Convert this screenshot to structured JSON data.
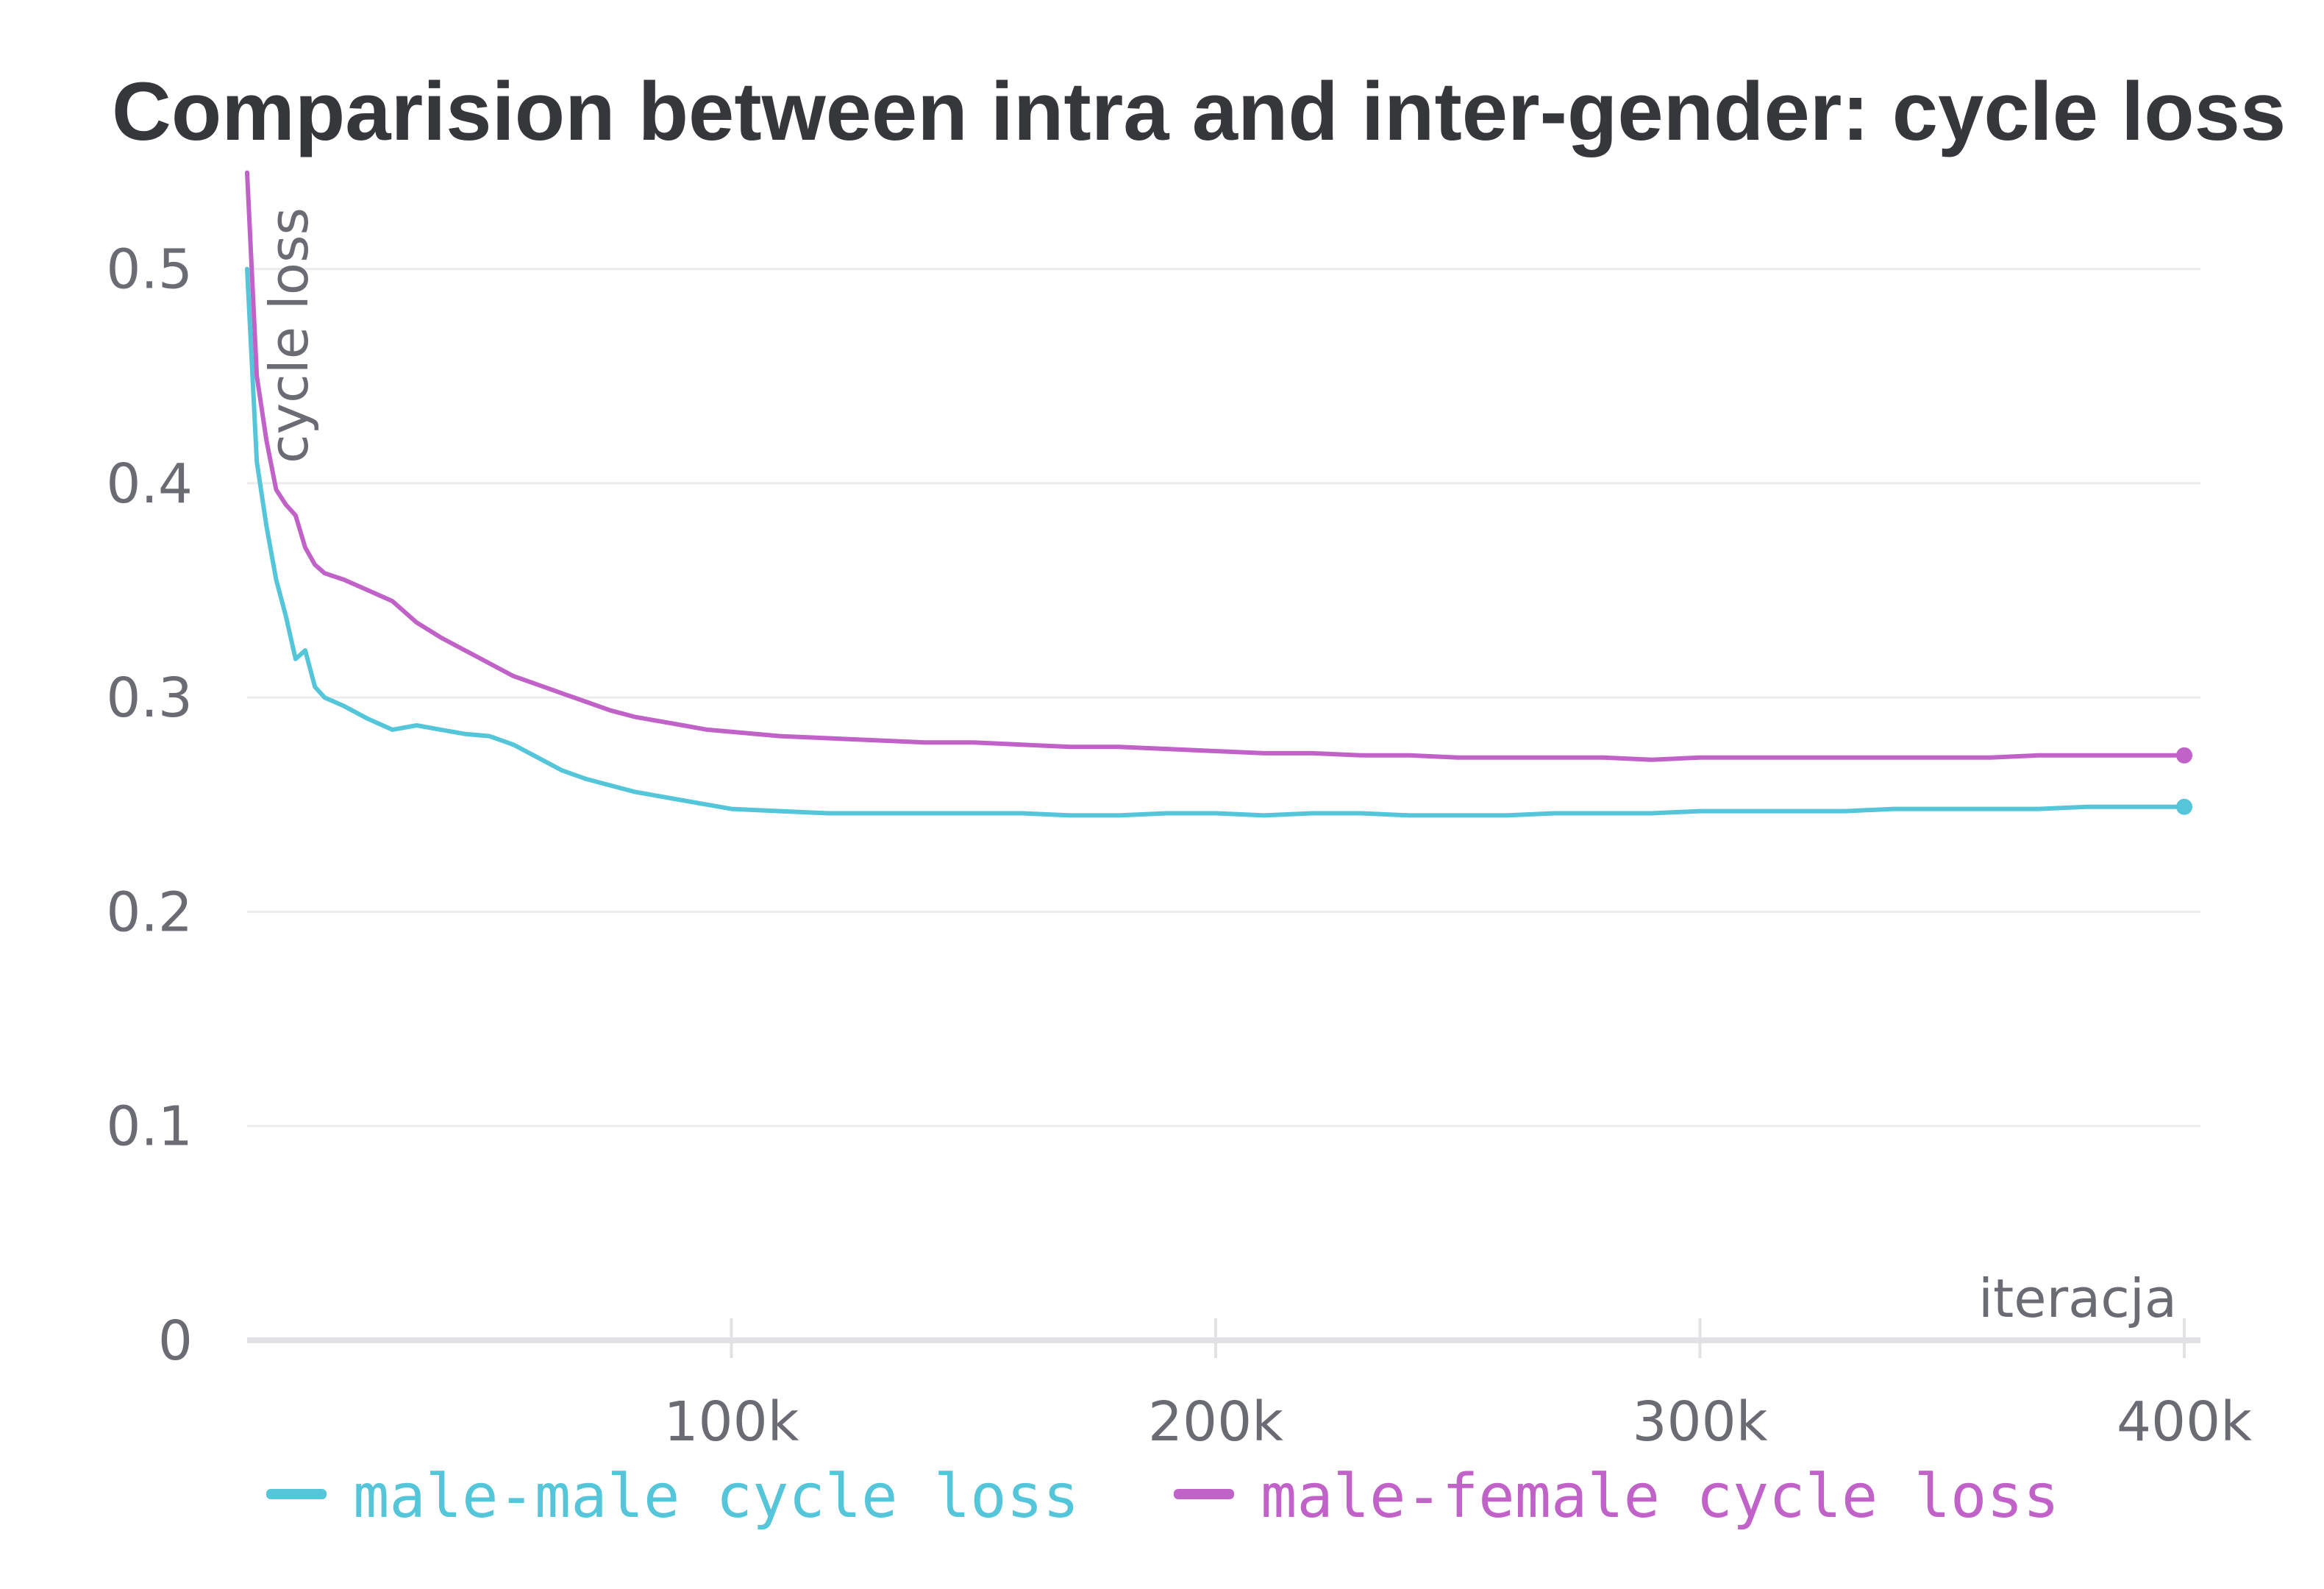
{
  "chart_data": {
    "type": "line",
    "title": "Comparision between intra and inter-gender: cycle loss",
    "xlabel": "iteracja",
    "ylabel": "cycle loss",
    "xlim": [
      0,
      400000
    ],
    "ylim": [
      0,
      0.55
    ],
    "grid": true,
    "legend_position": "bottom",
    "x_ticks": [
      {
        "value": 100000,
        "label": "100k"
      },
      {
        "value": 200000,
        "label": "200k"
      },
      {
        "value": 300000,
        "label": "300k"
      },
      {
        "value": 400000,
        "label": "400k"
      }
    ],
    "y_ticks": [
      {
        "value": 0,
        "label": "0"
      },
      {
        "value": 0.1,
        "label": "0.1"
      },
      {
        "value": 0.2,
        "label": "0.2"
      },
      {
        "value": 0.3,
        "label": "0.3"
      },
      {
        "value": 0.4,
        "label": "0.4"
      },
      {
        "value": 0.5,
        "label": "0.5"
      }
    ],
    "series": [
      {
        "name": "male-male cycle loss",
        "color": "#55c5d9",
        "points": [
          [
            0,
            0.5
          ],
          [
            2000,
            0.41
          ],
          [
            4000,
            0.38
          ],
          [
            6000,
            0.355
          ],
          [
            8000,
            0.338
          ],
          [
            10000,
            0.318
          ],
          [
            12000,
            0.322
          ],
          [
            14000,
            0.305
          ],
          [
            16000,
            0.3
          ],
          [
            20000,
            0.296
          ],
          [
            25000,
            0.29
          ],
          [
            30000,
            0.285
          ],
          [
            35000,
            0.287
          ],
          [
            40000,
            0.285
          ],
          [
            45000,
            0.283
          ],
          [
            50000,
            0.282
          ],
          [
            55000,
            0.278
          ],
          [
            60000,
            0.272
          ],
          [
            65000,
            0.266
          ],
          [
            70000,
            0.262
          ],
          [
            75000,
            0.259
          ],
          [
            80000,
            0.256
          ],
          [
            85000,
            0.254
          ],
          [
            90000,
            0.252
          ],
          [
            95000,
            0.25
          ],
          [
            100000,
            0.248
          ],
          [
            110000,
            0.247
          ],
          [
            120000,
            0.246
          ],
          [
            130000,
            0.246
          ],
          [
            140000,
            0.246
          ],
          [
            150000,
            0.246
          ],
          [
            160000,
            0.246
          ],
          [
            170000,
            0.245
          ],
          [
            180000,
            0.245
          ],
          [
            190000,
            0.246
          ],
          [
            200000,
            0.246
          ],
          [
            210000,
            0.245
          ],
          [
            220000,
            0.246
          ],
          [
            230000,
            0.246
          ],
          [
            240000,
            0.245
          ],
          [
            250000,
            0.245
          ],
          [
            260000,
            0.245
          ],
          [
            270000,
            0.246
          ],
          [
            280000,
            0.246
          ],
          [
            290000,
            0.246
          ],
          [
            300000,
            0.247
          ],
          [
            310000,
            0.247
          ],
          [
            320000,
            0.247
          ],
          [
            330000,
            0.247
          ],
          [
            340000,
            0.248
          ],
          [
            350000,
            0.248
          ],
          [
            360000,
            0.248
          ],
          [
            370000,
            0.248
          ],
          [
            380000,
            0.249
          ],
          [
            390000,
            0.249
          ],
          [
            400000,
            0.249
          ]
        ]
      },
      {
        "name": "male-female cycle loss",
        "color": "#c062c8",
        "points": [
          [
            0,
            0.545
          ],
          [
            2000,
            0.45
          ],
          [
            4000,
            0.42
          ],
          [
            6000,
            0.397
          ],
          [
            8000,
            0.39
          ],
          [
            10000,
            0.385
          ],
          [
            12000,
            0.37
          ],
          [
            14000,
            0.362
          ],
          [
            16000,
            0.358
          ],
          [
            20000,
            0.355
          ],
          [
            25000,
            0.35
          ],
          [
            30000,
            0.345
          ],
          [
            35000,
            0.335
          ],
          [
            40000,
            0.328
          ],
          [
            45000,
            0.322
          ],
          [
            50000,
            0.316
          ],
          [
            55000,
            0.31
          ],
          [
            60000,
            0.306
          ],
          [
            65000,
            0.302
          ],
          [
            70000,
            0.298
          ],
          [
            75000,
            0.294
          ],
          [
            80000,
            0.291
          ],
          [
            85000,
            0.289
          ],
          [
            90000,
            0.287
          ],
          [
            95000,
            0.285
          ],
          [
            100000,
            0.284
          ],
          [
            110000,
            0.282
          ],
          [
            120000,
            0.281
          ],
          [
            130000,
            0.28
          ],
          [
            140000,
            0.279
          ],
          [
            150000,
            0.279
          ],
          [
            160000,
            0.278
          ],
          [
            170000,
            0.277
          ],
          [
            180000,
            0.277
          ],
          [
            190000,
            0.276
          ],
          [
            200000,
            0.275
          ],
          [
            210000,
            0.274
          ],
          [
            220000,
            0.274
          ],
          [
            230000,
            0.273
          ],
          [
            240000,
            0.273
          ],
          [
            250000,
            0.272
          ],
          [
            260000,
            0.272
          ],
          [
            270000,
            0.272
          ],
          [
            280000,
            0.272
          ],
          [
            290000,
            0.271
          ],
          [
            300000,
            0.272
          ],
          [
            310000,
            0.272
          ],
          [
            320000,
            0.272
          ],
          [
            330000,
            0.272
          ],
          [
            340000,
            0.272
          ],
          [
            350000,
            0.272
          ],
          [
            360000,
            0.272
          ],
          [
            370000,
            0.273
          ],
          [
            380000,
            0.273
          ],
          [
            390000,
            0.273
          ],
          [
            400000,
            0.273
          ]
        ]
      }
    ]
  }
}
